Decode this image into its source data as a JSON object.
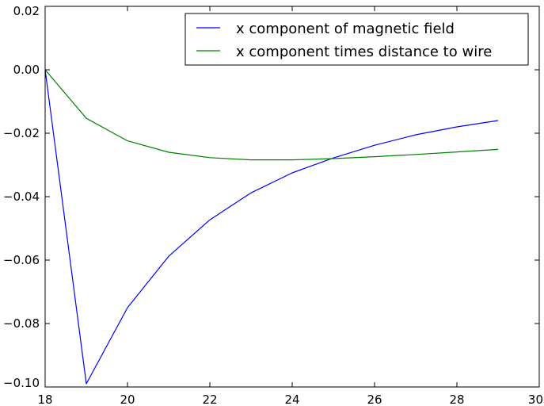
{
  "chart_data": {
    "type": "line",
    "xlim": [
      18,
      30
    ],
    "ylim": [
      -0.1,
      0.02
    ],
    "xticks": [
      18,
      20,
      22,
      24,
      26,
      28,
      30
    ],
    "xtick_labels": [
      "18",
      "20",
      "22",
      "24",
      "26",
      "28",
      "30"
    ],
    "yticks": [
      0.02,
      0.0,
      -0.02,
      -0.04,
      -0.06,
      -0.08,
      -0.1
    ],
    "ytick_labels": [
      "0.02",
      "0.00",
      "−0.02",
      "−0.04",
      "−0.06",
      "−0.08",
      "−0.10"
    ],
    "grid": false,
    "legend_position": "top-right",
    "x": [
      18,
      19,
      20,
      21,
      22,
      23,
      24,
      25,
      26,
      27,
      28,
      29
    ],
    "series": [
      {
        "name": "x component of magnetic field",
        "color": "#0000ff",
        "values": [
          0.0,
          -0.099,
          -0.075,
          -0.0588,
          -0.0473,
          -0.0388,
          -0.0325,
          -0.0278,
          -0.0238,
          -0.0205,
          -0.018,
          -0.016
        ]
      },
      {
        "name": "x component times distance to wire",
        "color": "#008000",
        "values": [
          0.0,
          -0.0153,
          -0.0224,
          -0.026,
          -0.0277,
          -0.0284,
          -0.0284,
          -0.028,
          -0.0274,
          -0.0267,
          -0.0259,
          -0.0251
        ]
      }
    ]
  }
}
